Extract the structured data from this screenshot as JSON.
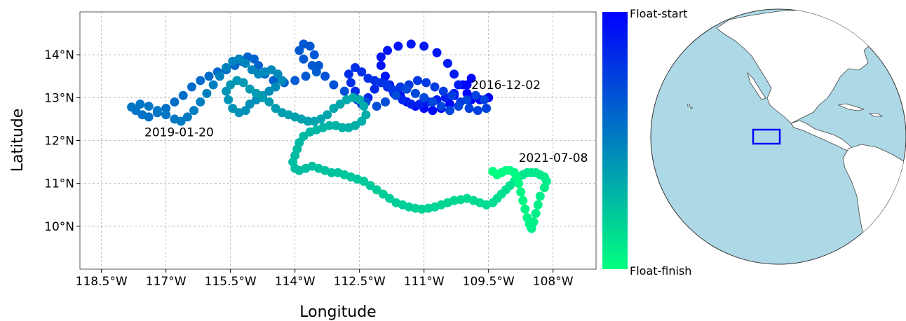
{
  "chart_data": {
    "type": "scatter",
    "xlabel": "Longitude",
    "ylabel": "Latitude",
    "xlim": [
      -119,
      -107
    ],
    "ylim": [
      9,
      15
    ],
    "grid": true,
    "x_ticks": [
      {
        "value": -118.5,
        "label": "118.5°W"
      },
      {
        "value": -117,
        "label": "117°W"
      },
      {
        "value": -115.5,
        "label": "115.5°W"
      },
      {
        "value": -114,
        "label": "114°W"
      },
      {
        "value": -112.5,
        "label": "112.5°W"
      },
      {
        "value": -111,
        "label": "111°W"
      },
      {
        "value": -109.5,
        "label": "109.5°W"
      },
      {
        "value": -108,
        "label": "108°W"
      }
    ],
    "y_ticks": [
      {
        "value": 10,
        "label": "10°N"
      },
      {
        "value": 11,
        "label": "11°N"
      },
      {
        "value": 12,
        "label": "12°N"
      },
      {
        "value": 13,
        "label": "13°N"
      },
      {
        "value": 14,
        "label": "14°N"
      }
    ],
    "colorbar": {
      "top_label": "Float-start",
      "bottom_label": "Float-finish",
      "start_color": "#0000ff",
      "end_color": "#00ff80"
    },
    "annotations": [
      {
        "text": "2016-12-02",
        "x": -109.9,
        "y": 13.2
      },
      {
        "text": "2019-01-20",
        "x": -117.5,
        "y": 12.1
      },
      {
        "text": "2021-07-08",
        "x": -108.8,
        "y": 11.5
      }
    ],
    "points": [
      [
        -109.5,
        13.0
      ],
      [
        -109.7,
        12.95
      ],
      [
        -109.9,
        12.95
      ],
      [
        -110.0,
        13.1
      ],
      [
        -110.0,
        13.3
      ],
      [
        -109.9,
        13.45
      ],
      [
        -110.1,
        13.3
      ],
      [
        -110.3,
        13.05
      ],
      [
        -110.4,
        12.85
      ],
      [
        -110.6,
        12.75
      ],
      [
        -110.8,
        12.7
      ],
      [
        -111.0,
        12.75
      ],
      [
        -111.2,
        12.8
      ],
      [
        -111.4,
        12.9
      ],
      [
        -111.55,
        13.05
      ],
      [
        -111.7,
        13.15
      ],
      [
        -111.8,
        13.3
      ],
      [
        -111.9,
        13.5
      ],
      [
        -112.0,
        13.75
      ],
      [
        -112.0,
        13.95
      ],
      [
        -111.85,
        14.1
      ],
      [
        -111.6,
        14.2
      ],
      [
        -111.3,
        14.25
      ],
      [
        -111.0,
        14.2
      ],
      [
        -110.7,
        14.05
      ],
      [
        -110.45,
        13.8
      ],
      [
        -110.3,
        13.55
      ],
      [
        -110.2,
        13.3
      ],
      [
        -110.3,
        13.1
      ],
      [
        -110.5,
        13.0
      ],
      [
        -110.7,
        12.95
      ],
      [
        -110.9,
        12.9
      ],
      [
        -111.1,
        12.85
      ],
      [
        -111.3,
        12.85
      ],
      [
        -111.5,
        12.95
      ],
      [
        -111.7,
        13.1
      ],
      [
        -111.85,
        13.25
      ],
      [
        -112.0,
        13.35
      ],
      [
        -112.15,
        13.2
      ],
      [
        -112.3,
        13.0
      ],
      [
        -112.45,
        12.85
      ],
      [
        -112.55,
        12.95
      ],
      [
        -112.6,
        13.15
      ],
      [
        -112.7,
        13.35
      ],
      [
        -112.75,
        13.55
      ],
      [
        -112.6,
        13.7
      ],
      [
        -112.45,
        13.6
      ],
      [
        -112.3,
        13.45
      ],
      [
        -112.15,
        13.4
      ],
      [
        -112.0,
        13.35
      ],
      [
        -111.85,
        13.3
      ],
      [
        -111.75,
        13.2
      ],
      [
        -111.55,
        13.25
      ],
      [
        -111.35,
        13.3
      ],
      [
        -111.15,
        13.4
      ],
      [
        -110.95,
        13.35
      ],
      [
        -110.75,
        13.25
      ],
      [
        -110.55,
        13.15
      ],
      [
        -110.35,
        13.05
      ],
      [
        -110.15,
        12.9
      ],
      [
        -109.95,
        12.75
      ],
      [
        -109.75,
        12.7
      ],
      [
        -109.55,
        12.75
      ],
      [
        -109.6,
        12.95
      ],
      [
        -109.8,
        13.05
      ],
      [
        -110.0,
        12.95
      ],
      [
        -110.2,
        12.8
      ],
      [
        -110.4,
        12.7
      ],
      [
        -110.6,
        12.8
      ],
      [
        -110.8,
        12.9
      ],
      [
        -111.0,
        13.0
      ],
      [
        -111.2,
        13.1
      ],
      [
        -111.4,
        13.2
      ],
      [
        -111.65,
        13.05
      ],
      [
        -111.9,
        12.9
      ],
      [
        -112.1,
        12.8
      ],
      [
        -112.35,
        12.9
      ],
      [
        -112.6,
        13.0
      ],
      [
        -112.85,
        13.15
      ],
      [
        -113.1,
        13.3
      ],
      [
        -113.3,
        13.5
      ],
      [
        -113.45,
        13.75
      ],
      [
        -113.55,
        14.0
      ],
      [
        -113.65,
        14.2
      ],
      [
        -113.8,
        14.25
      ],
      [
        -113.9,
        14.1
      ],
      [
        -113.8,
        13.9
      ],
      [
        -113.6,
        13.75
      ],
      [
        -113.5,
        13.6
      ],
      [
        -113.75,
        13.5
      ],
      [
        -114.0,
        13.4
      ],
      [
        -114.25,
        13.35
      ],
      [
        -114.5,
        13.4
      ],
      [
        -114.7,
        13.55
      ],
      [
        -114.85,
        13.75
      ],
      [
        -114.95,
        13.9
      ],
      [
        -115.1,
        13.95
      ],
      [
        -115.25,
        13.85
      ],
      [
        -115.4,
        13.75
      ],
      [
        -115.6,
        13.65
      ],
      [
        -115.8,
        13.6
      ],
      [
        -116.0,
        13.5
      ],
      [
        -116.2,
        13.4
      ],
      [
        -116.4,
        13.25
      ],
      [
        -116.6,
        13.05
      ],
      [
        -116.8,
        12.9
      ],
      [
        -117.0,
        12.75
      ],
      [
        -117.2,
        12.65
      ],
      [
        -117.4,
        12.55
      ],
      [
        -117.55,
        12.6
      ],
      [
        -117.7,
        12.7
      ],
      [
        -117.8,
        12.78
      ],
      [
        -117.6,
        12.85
      ],
      [
        -117.4,
        12.8
      ],
      [
        -117.2,
        12.7
      ],
      [
        -117.0,
        12.6
      ],
      [
        -116.8,
        12.5
      ],
      [
        -116.65,
        12.45
      ],
      [
        -116.5,
        12.55
      ],
      [
        -116.35,
        12.7
      ],
      [
        -116.2,
        12.9
      ],
      [
        -116.05,
        13.1
      ],
      [
        -115.9,
        13.3
      ],
      [
        -115.75,
        13.5
      ],
      [
        -115.6,
        13.7
      ],
      [
        -115.45,
        13.85
      ],
      [
        -115.3,
        13.9
      ],
      [
        -115.15,
        13.8
      ],
      [
        -115.0,
        13.65
      ],
      [
        -114.85,
        13.55
      ],
      [
        -114.7,
        13.6
      ],
      [
        -114.55,
        13.65
      ],
      [
        -114.4,
        13.55
      ],
      [
        -114.3,
        13.4
      ],
      [
        -114.45,
        13.25
      ],
      [
        -114.6,
        13.15
      ],
      [
        -114.75,
        13.05
      ],
      [
        -114.9,
        12.95
      ],
      [
        -115.05,
        12.85
      ],
      [
        -115.15,
        12.7
      ],
      [
        -115.3,
        12.65
      ],
      [
        -115.45,
        12.75
      ],
      [
        -115.55,
        12.95
      ],
      [
        -115.6,
        13.15
      ],
      [
        -115.5,
        13.3
      ],
      [
        -115.35,
        13.4
      ],
      [
        -115.2,
        13.35
      ],
      [
        -115.05,
        13.2
      ],
      [
        -114.9,
        13.1
      ],
      [
        -114.75,
        13.0
      ],
      [
        -114.6,
        12.9
      ],
      [
        -114.45,
        12.75
      ],
      [
        -114.3,
        12.65
      ],
      [
        -114.15,
        12.6
      ],
      [
        -114.0,
        12.55
      ],
      [
        -113.85,
        12.5
      ],
      [
        -113.7,
        12.45
      ],
      [
        -113.55,
        12.45
      ],
      [
        -113.4,
        12.5
      ],
      [
        -113.25,
        12.6
      ],
      [
        -113.1,
        12.75
      ],
      [
        -112.95,
        12.85
      ],
      [
        -112.8,
        12.95
      ],
      [
        -112.65,
        13.0
      ],
      [
        -112.5,
        12.95
      ],
      [
        -112.4,
        12.8
      ],
      [
        -112.35,
        12.6
      ],
      [
        -112.45,
        12.45
      ],
      [
        -112.6,
        12.35
      ],
      [
        -112.75,
        12.3
      ],
      [
        -112.9,
        12.3
      ],
      [
        -113.05,
        12.35
      ],
      [
        -113.2,
        12.35
      ],
      [
        -113.35,
        12.3
      ],
      [
        -113.5,
        12.25
      ],
      [
        -113.65,
        12.2
      ],
      [
        -113.8,
        12.1
      ],
      [
        -113.9,
        11.95
      ],
      [
        -113.95,
        11.8
      ],
      [
        -114.0,
        11.65
      ],
      [
        -114.05,
        11.5
      ],
      [
        -114.0,
        11.35
      ],
      [
        -113.9,
        11.3
      ],
      [
        -113.75,
        11.35
      ],
      [
        -113.6,
        11.4
      ],
      [
        -113.45,
        11.35
      ],
      [
        -113.3,
        11.3
      ],
      [
        -113.15,
        11.25
      ],
      [
        -113.0,
        11.25
      ],
      [
        -112.85,
        11.2
      ],
      [
        -112.7,
        11.15
      ],
      [
        -112.55,
        11.1
      ],
      [
        -112.4,
        11.05
      ],
      [
        -112.25,
        10.95
      ],
      [
        -112.1,
        10.85
      ],
      [
        -111.95,
        10.75
      ],
      [
        -111.8,
        10.65
      ],
      [
        -111.65,
        10.55
      ],
      [
        -111.5,
        10.5
      ],
      [
        -111.35,
        10.45
      ],
      [
        -111.2,
        10.42
      ],
      [
        -111.05,
        10.4
      ],
      [
        -110.9,
        10.42
      ],
      [
        -110.75,
        10.45
      ],
      [
        -110.6,
        10.5
      ],
      [
        -110.45,
        10.55
      ],
      [
        -110.3,
        10.6
      ],
      [
        -110.15,
        10.62
      ],
      [
        -110.0,
        10.65
      ],
      [
        -109.85,
        10.6
      ],
      [
        -109.7,
        10.55
      ],
      [
        -109.55,
        10.5
      ],
      [
        -109.4,
        10.55
      ],
      [
        -109.3,
        10.65
      ],
      [
        -109.2,
        10.75
      ],
      [
        -109.1,
        10.85
      ],
      [
        -109.0,
        10.95
      ],
      [
        -108.9,
        11.05
      ],
      [
        -108.8,
        11.15
      ],
      [
        -108.7,
        11.2
      ],
      [
        -108.6,
        11.25
      ],
      [
        -108.5,
        11.25
      ],
      [
        -108.4,
        11.25
      ],
      [
        -108.3,
        11.2
      ],
      [
        -108.2,
        11.15
      ],
      [
        -108.15,
        11.05
      ],
      [
        -108.2,
        10.9
      ],
      [
        -108.3,
        10.7
      ],
      [
        -108.35,
        10.5
      ],
      [
        -108.4,
        10.3
      ],
      [
        -108.45,
        10.1
      ],
      [
        -108.5,
        9.95
      ],
      [
        -108.55,
        10.05
      ],
      [
        -108.6,
        10.2
      ],
      [
        -108.65,
        10.4
      ],
      [
        -108.7,
        10.6
      ],
      [
        -108.75,
        10.8
      ],
      [
        -108.8,
        11.0
      ],
      [
        -108.85,
        11.15
      ],
      [
        -108.9,
        11.25
      ],
      [
        -109.0,
        11.3
      ],
      [
        -109.1,
        11.3
      ],
      [
        -109.2,
        11.25
      ],
      [
        -109.3,
        11.2
      ],
      [
        -109.4,
        11.28
      ]
    ]
  },
  "globe": {
    "ocean_color": "#add8e6",
    "land_color": "#ffffff",
    "box_color": "#0000ff"
  }
}
